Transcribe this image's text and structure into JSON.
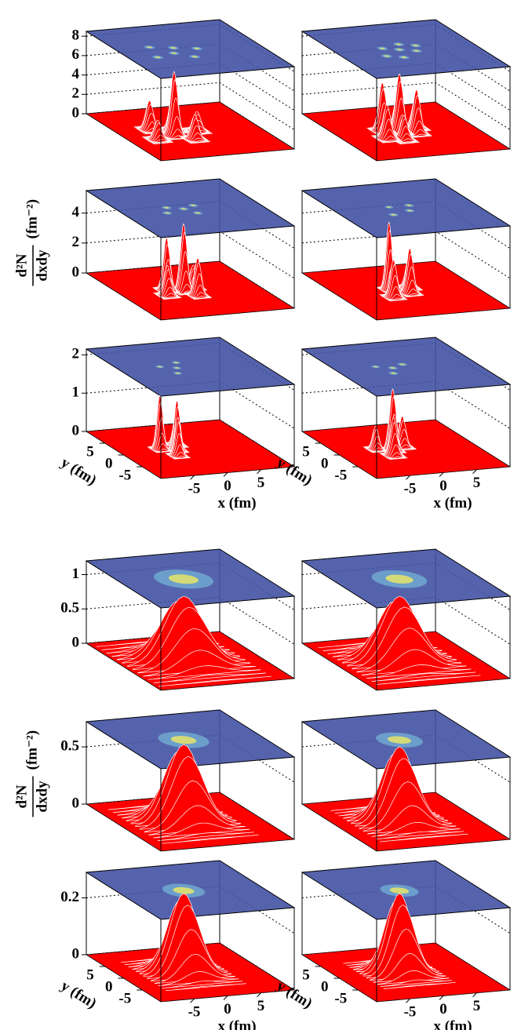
{
  "chart_data": [
    {
      "type": "surface3d",
      "xlim": [
        -10,
        10
      ],
      "ylim": [
        -10,
        10
      ],
      "zlim": [
        0,
        8.5
      ],
      "zticks": [
        0,
        2,
        4,
        6,
        8
      ],
      "surface_color": "#ff0000",
      "plane_color": "#4352a3",
      "spot_color": "#e8e46a",
      "x": [
        -3,
        -2,
        -5,
        -1,
        -6,
        1
      ],
      "y": [
        -1,
        1,
        2,
        -3,
        -2,
        0
      ],
      "values": [
        6.6,
        4,
        3,
        2.5,
        2,
        2
      ],
      "widths": [
        0.5,
        0.5,
        0.5,
        0.5,
        0.5,
        0.5
      ]
    },
    {
      "type": "surface3d",
      "xlim": [
        -10,
        10
      ],
      "ylim": [
        -10,
        10
      ],
      "zlim": [
        0,
        8.5
      ],
      "zgrid": [
        2,
        4,
        6,
        8
      ],
      "surface_color": "#ff0000",
      "plane_color": "#4352a3",
      "spot_color": "#e8e46a",
      "x": [
        -1,
        -3,
        1,
        -4,
        0,
        2,
        -2
      ],
      "y": [
        0,
        1,
        -1,
        -2,
        2,
        1,
        -3
      ],
      "values": [
        6,
        5,
        4.5,
        3.5,
        4,
        3,
        2.5
      ],
      "widths": [
        0.5,
        0.5,
        0.5,
        0.5,
        0.5,
        0.5,
        0.5
      ]
    },
    {
      "type": "surface3d",
      "xlim": [
        -10,
        10
      ],
      "ylim": [
        -10,
        10
      ],
      "zlim": [
        0,
        5.5
      ],
      "zticks": [
        0,
        2,
        4
      ],
      "surface_color": "#ff0000",
      "plane_color": "#4352a3",
      "spot_color": "#e8e46a",
      "zlabel": {
        "numerator": "d²N",
        "denominator": "dxdy",
        "unit": "(fm⁻²)"
      },
      "x": [
        -1,
        -3,
        0,
        -4,
        1
      ],
      "y": [
        0,
        1,
        -2,
        -1,
        1
      ],
      "values": [
        4.5,
        3.5,
        2.5,
        2,
        1.5
      ],
      "widths": [
        0.45,
        0.45,
        0.45,
        0.45,
        0.45
      ]
    },
    {
      "type": "surface3d",
      "xlim": [
        -10,
        10
      ],
      "ylim": [
        -10,
        10
      ],
      "zlim": [
        0,
        5.5
      ],
      "zgrid": [
        2,
        4
      ],
      "surface_color": "#ff0000",
      "plane_color": "#4352a3",
      "spot_color": "#e8e46a",
      "x": [
        -2,
        0,
        -3,
        1
      ],
      "y": [
        1,
        -1,
        -2,
        1
      ],
      "values": [
        4.5,
        3,
        2.5,
        2
      ],
      "widths": [
        0.4,
        0.45,
        0.45,
        0.45
      ]
    },
    {
      "type": "surface3d",
      "xlim": [
        -10,
        10
      ],
      "ylim": [
        -10,
        10
      ],
      "zlim": [
        0,
        2.15
      ],
      "zticks": [
        0,
        1,
        2
      ],
      "surface_color": "#ff0000",
      "plane_color": "#4352a3",
      "spot_color": "#e8e46a",
      "xticks": [
        -5,
        0,
        5
      ],
      "yticks": [
        -5,
        0,
        5
      ],
      "xlabel": "x (fm)",
      "ylabel": "y (fm)",
      "x": [
        -4,
        -2,
        -3,
        -1
      ],
      "y": [
        1,
        0,
        -2,
        2
      ],
      "values": [
        1.4,
        1.3,
        1.0,
        0.8
      ],
      "widths": [
        0.4,
        0.4,
        0.4,
        0.4
      ]
    },
    {
      "type": "surface3d",
      "xlim": [
        -10,
        10
      ],
      "ylim": [
        -10,
        10
      ],
      "zlim": [
        0,
        2.15
      ],
      "zgrid": [
        1,
        2
      ],
      "surface_color": "#ff0000",
      "plane_color": "#4352a3",
      "spot_color": "#e8e46a",
      "xticks": [
        -5,
        0,
        5
      ],
      "yticks": [
        -5,
        0,
        5
      ],
      "xlabel": "x (fm)",
      "ylabel": "y (fm)",
      "x": [
        -2,
        -3,
        0,
        -4
      ],
      "y": [
        0,
        -2,
        1,
        1
      ],
      "values": [
        1.6,
        1,
        0.8,
        0.6
      ],
      "widths": [
        0.45,
        0.45,
        0.45,
        0.4
      ]
    },
    {
      "type": "surface3d",
      "xlim": [
        -10,
        10
      ],
      "ylim": [
        -10,
        10
      ],
      "zlim": [
        0,
        1.2
      ],
      "zticks": [
        0,
        0.5,
        1
      ],
      "surface_color": "#ff0000",
      "plane_color": "#4352a3",
      "spot_color": "#e8e46a",
      "x": [
        -1
      ],
      "y": [
        0
      ],
      "values": [
        0.95
      ],
      "widths": [
        2.8
      ]
    },
    {
      "type": "surface3d",
      "xlim": [
        -10,
        10
      ],
      "ylim": [
        -10,
        10
      ],
      "zlim": [
        0,
        1.2
      ],
      "zgrid": [
        0.5,
        1
      ],
      "surface_color": "#ff0000",
      "plane_color": "#4352a3",
      "spot_color": "#e8e46a",
      "x": [
        -1
      ],
      "y": [
        0
      ],
      "values": [
        0.95
      ],
      "widths": [
        2.6
      ]
    },
    {
      "type": "surface3d",
      "xlim": [
        -10,
        10
      ],
      "ylim": [
        -10,
        10
      ],
      "zlim": [
        0,
        0.72
      ],
      "zticks": [
        0,
        0.5
      ],
      "surface_color": "#ff0000",
      "plane_color": "#4352a3",
      "spot_color": "#e8e46a",
      "zlabel": {
        "numerator": "d²N",
        "denominator": "dxdy",
        "unit": "(fm⁻²)"
      },
      "x": [
        -1
      ],
      "y": [
        0
      ],
      "values": [
        0.68
      ],
      "widths": [
        2.4
      ]
    },
    {
      "type": "surface3d",
      "xlim": [
        -10,
        10
      ],
      "ylim": [
        -10,
        10
      ],
      "zlim": [
        0,
        0.72
      ],
      "zgrid": [
        0.5
      ],
      "surface_color": "#ff0000",
      "plane_color": "#4352a3",
      "spot_color": "#e8e46a",
      "x": [
        -1
      ],
      "y": [
        0
      ],
      "values": [
        0.66
      ],
      "widths": [
        2.2
      ]
    },
    {
      "type": "surface3d",
      "xlim": [
        -10,
        10
      ],
      "ylim": [
        -10,
        10
      ],
      "zlim": [
        0,
        0.29
      ],
      "zticks": [
        0,
        0.2
      ],
      "surface_color": "#ff0000",
      "plane_color": "#4352a3",
      "spot_color": "#e8e46a",
      "xticks": [
        -5,
        0,
        5
      ],
      "yticks": [
        -5,
        0,
        5
      ],
      "xlabel": "x (fm)",
      "ylabel": "y (fm)",
      "x": [
        -1
      ],
      "y": [
        0
      ],
      "values": [
        0.28
      ],
      "widths": [
        2.0
      ]
    },
    {
      "type": "surface3d",
      "xlim": [
        -10,
        10
      ],
      "ylim": [
        -10,
        10
      ],
      "zlim": [
        0,
        0.29
      ],
      "zgrid": [
        0.2
      ],
      "surface_color": "#ff0000",
      "plane_color": "#4352a3",
      "spot_color": "#e8e46a",
      "xticks": [
        -5,
        0,
        5
      ],
      "yticks": [
        -5,
        0,
        5
      ],
      "xlabel": "x (fm)",
      "ylabel": "y (fm)",
      "x": [
        -1
      ],
      "y": [
        0
      ],
      "values": [
        0.28
      ],
      "widths": [
        1.8
      ]
    }
  ]
}
